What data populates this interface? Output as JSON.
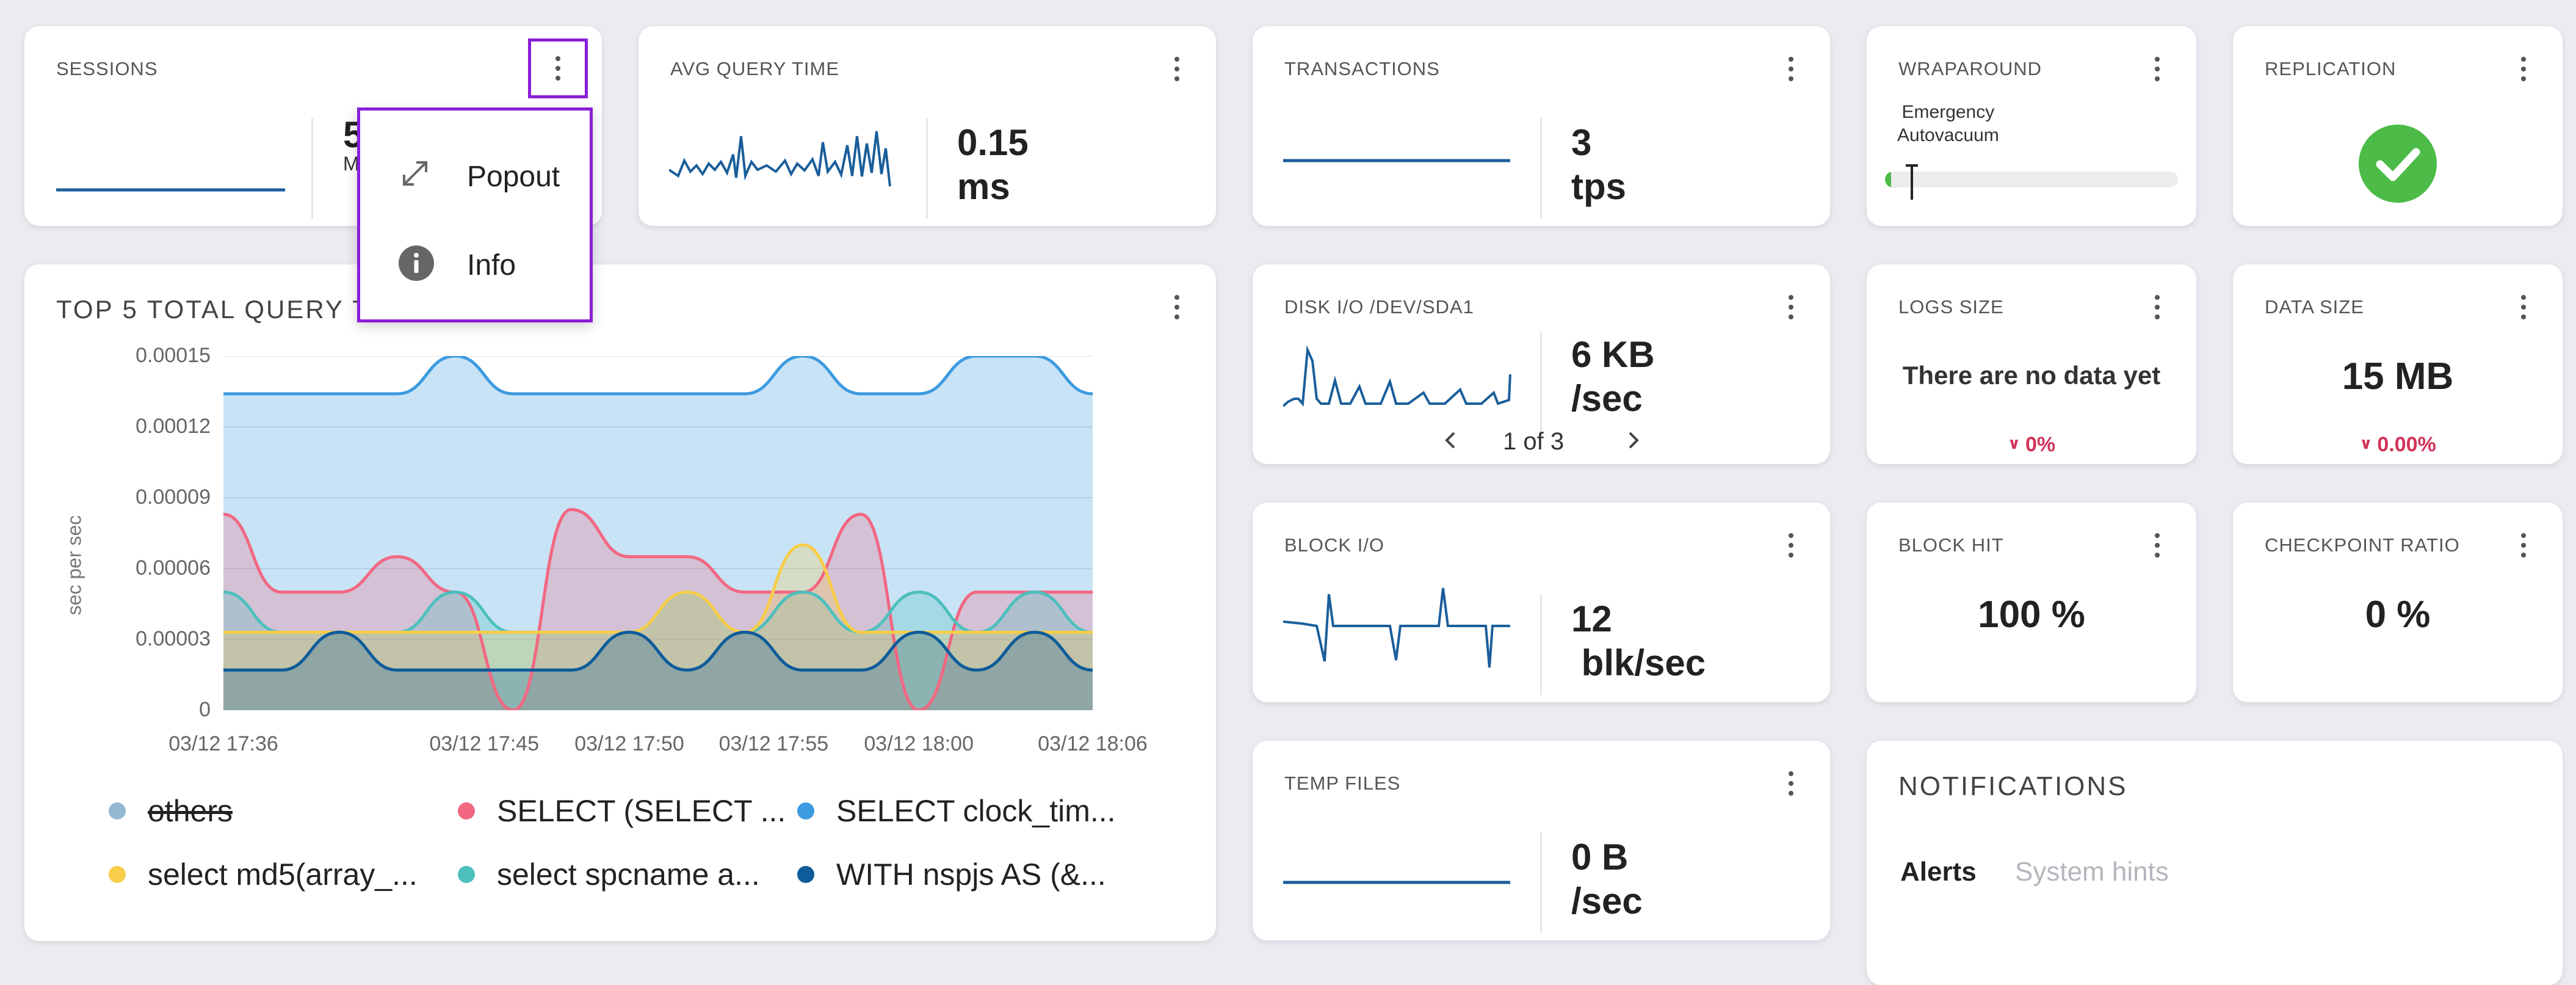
{
  "colors": {
    "accent": "#8a1ed6",
    "sparkline": "#1a5e9a",
    "ok_green": "#4cbb47",
    "negative_red": "#d2335a",
    "series_others": "#93b9d0",
    "series_pink": "#f26782",
    "series_blue": "#3d9bdf",
    "series_yellow": "#f7cd4a",
    "series_teal": "#4dbfbd",
    "series_navy": "#0e5c9a"
  },
  "sessions": {
    "title": "SESSIONS",
    "value": "5",
    "sub": "M"
  },
  "menu": {
    "items": [
      {
        "label": "Popout",
        "icon": "expand-icon"
      },
      {
        "label": "Info",
        "icon": "info-icon"
      }
    ]
  },
  "avg_query": {
    "title": "AVG QUERY TIME",
    "value_line1": "0.15",
    "value_line2": "ms"
  },
  "transactions": {
    "title": "TRANSACTIONS",
    "value_line1": "3",
    "value_line2": "tps"
  },
  "wraparound": {
    "title": "WRAPAROUND",
    "label_line1": "Emergency",
    "label_line2": "Autovacuum",
    "progress": 0.02
  },
  "replication": {
    "title": "REPLICATION",
    "status_icon": "check-circle-icon"
  },
  "top5": {
    "title": "TOP 5 TOTAL QUERY T",
    "legend": [
      {
        "name": "others",
        "color": "#93b9d0",
        "struck": true
      },
      {
        "name": "SELECT (SELECT ...",
        "color": "#f26782"
      },
      {
        "name": "SELECT clock_tim...",
        "color": "#3d9bdf"
      },
      {
        "name": "select md5(array_...",
        "color": "#f7cd4a"
      },
      {
        "name": "select spcname a...",
        "color": "#4dbfbd"
      },
      {
        "name": "WITH nspjs AS (&...",
        "color": "#0e5c9a"
      }
    ]
  },
  "chart_data": {
    "type": "area",
    "ylabel": "sec per sec",
    "ylim": [
      0,
      0.00015
    ],
    "yticks": [
      "0.00015",
      "0.00012",
      "0.00009",
      "0.00006",
      "0.00003",
      "0"
    ],
    "xticks": [
      "03/12 17:36",
      "03/12 17:45",
      "03/12 17:50",
      "03/12 17:55",
      "03/12 18:00",
      "03/12 18:06"
    ],
    "grid": "horizontal",
    "legend_position": "bottom",
    "x": [
      "17:36",
      "17:38",
      "17:40",
      "17:42",
      "17:44",
      "17:46",
      "17:48",
      "17:50",
      "17:52",
      "17:54",
      "17:56",
      "17:58",
      "18:00",
      "18:02",
      "18:04",
      "18:06"
    ],
    "series": [
      {
        "name": "SELECT clock_tim...",
        "values": [
          0.000134,
          0.000134,
          0.000134,
          0.000134,
          0.00015,
          0.000134,
          0.000134,
          0.000134,
          0.000134,
          0.000134,
          0.00015,
          0.000134,
          0.000134,
          0.00015,
          0.00015,
          0.000134
        ]
      },
      {
        "name": "SELECT (SELECT ...",
        "values": [
          8.3e-05,
          5e-05,
          5e-05,
          6.5e-05,
          5e-05,
          0.0,
          8.5e-05,
          6.5e-05,
          6.5e-05,
          5e-05,
          5e-05,
          8.3e-05,
          0.0,
          5e-05,
          5e-05,
          5e-05
        ]
      },
      {
        "name": "select spcname a...",
        "values": [
          5e-05,
          3.3e-05,
          3.3e-05,
          3.3e-05,
          5e-05,
          3.3e-05,
          3.3e-05,
          3.3e-05,
          5e-05,
          3.3e-05,
          5e-05,
          3.3e-05,
          5e-05,
          3.3e-05,
          5e-05,
          3.3e-05
        ]
      },
      {
        "name": "select md5(array_...",
        "values": [
          3.3e-05,
          3.3e-05,
          3.3e-05,
          3.3e-05,
          3.3e-05,
          3.3e-05,
          3.3e-05,
          3.3e-05,
          5e-05,
          3.3e-05,
          7e-05,
          3.3e-05,
          3.3e-05,
          3.3e-05,
          3.3e-05,
          3.3e-05
        ]
      },
      {
        "name": "WITH nspjs AS (&...",
        "values": [
          1.7e-05,
          1.7e-05,
          3.3e-05,
          1.7e-05,
          1.7e-05,
          1.7e-05,
          1.7e-05,
          3.3e-05,
          1.7e-05,
          3.3e-05,
          1.7e-05,
          1.7e-05,
          3.3e-05,
          1.7e-05,
          3.3e-05,
          1.7e-05
        ]
      }
    ]
  },
  "disk_io": {
    "title": "DISK I/O /DEV/SDA1",
    "value_line1": "6 KB",
    "value_line2": "/sec",
    "pager": "1 of 3"
  },
  "logs_size": {
    "title": "LOGS SIZE",
    "value": "There are no data yet",
    "change": "0%"
  },
  "data_size": {
    "title": "DATA SIZE",
    "value": "15 MB",
    "change": "0.00%"
  },
  "block_io": {
    "title": "BLOCK I/O",
    "value_line1": "12",
    "value_line2": " blk/sec"
  },
  "block_hit": {
    "title": "BLOCK HIT",
    "value": "100 %"
  },
  "checkpoint": {
    "title": "CHECKPOINT RATIO",
    "value": "0 %"
  },
  "temp_files": {
    "title": "TEMP FILES",
    "value_line1": "0 B",
    "value_line2": "/sec"
  },
  "notifications": {
    "title": "NOTIFICATIONS",
    "tabs": [
      "Alerts",
      "System hints"
    ]
  }
}
